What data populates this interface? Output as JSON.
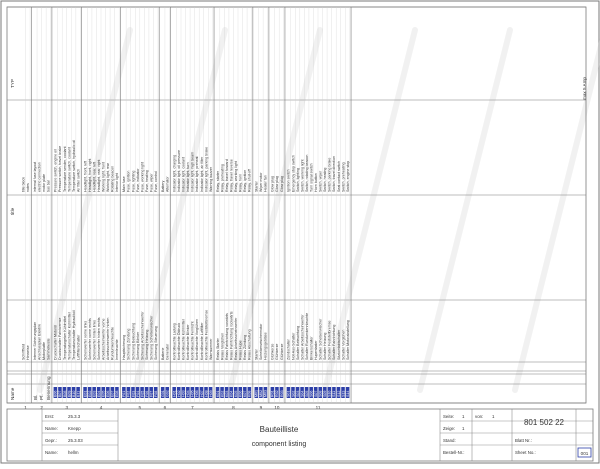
{
  "columns": {
    "name": "Name",
    "bl": "Bl.",
    "pf": "Pf.",
    "benennung": "Benennung",
    "title": "title",
    "type": "TYP"
  },
  "groups": [
    {
      "marker": "1",
      "rows": [
        {
          "name": "",
          "bl": "",
          "pf": "",
          "de": "Schriftfeld",
          "en": "title block",
          "typ": ""
        },
        {
          "name": "",
          "bl": "",
          "pf": "",
          "de": "Hinweise",
          "en": "notes",
          "typ": ""
        }
      ]
    },
    {
      "marker": "2",
      "rows": [
        {
          "name": "",
          "bl": "",
          "pf": "",
          "de": "Interner Sicherungsplan",
          "en": "internal fuse layout",
          "typ": ""
        },
        {
          "name": "",
          "bl": "",
          "pf": "",
          "de": "Anschlussplan Elektrik",
          "en": "electric connection",
          "typ": ""
        },
        {
          "name": "",
          "bl": "",
          "pf": "",
          "de": "Motorplatte",
          "en": "motor plate",
          "typ": ""
        },
        {
          "name": "",
          "bl": "",
          "pf": "",
          "de": "Sammelleiste",
          "en": "bus bar",
          "typ": ""
        }
      ]
    },
    {
      "marker": "3",
      "rows": [
        {
          "name": "B06",
          "bl": "",
          "pf": "",
          "de": "Druckschalter Motoröl",
          "en": "Pressure switch, engine oil",
          "typ": ""
        },
        {
          "name": "B07",
          "bl": "",
          "pf": "",
          "de": "Druckschalter Fahrbremse",
          "en": "Pressure switch, travel brake",
          "typ": ""
        },
        {
          "name": "B08",
          "bl": "",
          "pf": "",
          "de": "Temperaturgeber Kühlmittel",
          "en": "Temperature sender, coolant",
          "typ": ""
        },
        {
          "name": "B09",
          "bl": "",
          "pf": "",
          "de": "Temperaturschalter Kühlmittel",
          "en": "Temperature switch, coolant",
          "typ": ""
        },
        {
          "name": "B10",
          "bl": "",
          "pf": "",
          "de": "Temperaturschalter Hydrauliköl",
          "en": "Temperature switch, hydraulic oil",
          "typ": ""
        },
        {
          "name": "B11",
          "bl": "",
          "pf": "",
          "de": "Luftfilterschalter",
          "en": "Air filter switch",
          "typ": ""
        }
      ]
    },
    {
      "marker": "4",
      "rows": [
        {
          "name": "E01",
          "bl": "",
          "pf": "",
          "de": "Scheinwerfer vorne links",
          "en": "Headlight, front, left",
          "typ": ""
        },
        {
          "name": "E02",
          "bl": "",
          "pf": "",
          "de": "Scheinwerfer vorne rechts",
          "en": "Headlight, front, right",
          "typ": ""
        },
        {
          "name": "E03",
          "bl": "",
          "pf": "",
          "de": "Scheinwerfer hinten links",
          "en": "Headlight, rear, left",
          "typ": ""
        },
        {
          "name": "E04",
          "bl": "",
          "pf": "",
          "de": "Scheinwerfer hinten rechts",
          "en": "Headlight, rear, right",
          "typ": ""
        },
        {
          "name": "E05",
          "bl": "",
          "pf": "",
          "de": "Arbeitsscheinwerfer vorne",
          "en": "Working light, front",
          "typ": ""
        },
        {
          "name": "E06",
          "bl": "",
          "pf": "",
          "de": "Arbeitsscheinwerfer hinten",
          "en": "Working light, rear",
          "typ": ""
        },
        {
          "name": "E07",
          "bl": "",
          "pf": "",
          "de": "Rundumkennleuchte",
          "en": "Rotating beacon",
          "typ": ""
        },
        {
          "name": "E08",
          "bl": "",
          "pf": "",
          "de": "Innenleuchte",
          "en": "Interior light",
          "typ": ""
        }
      ]
    },
    {
      "marker": "5",
      "rows": [
        {
          "name": "F01",
          "bl": "",
          "pf": "",
          "de": "Hauptsicherung",
          "en": "Main fuse",
          "typ": ""
        },
        {
          "name": "F02",
          "bl": "",
          "pf": "",
          "de": "Sicherung Zündung",
          "en": "Fuse, ignition",
          "typ": ""
        },
        {
          "name": "F03",
          "bl": "",
          "pf": "",
          "de": "Sicherung Beleuchtung",
          "en": "Fuse, lighting",
          "typ": ""
        },
        {
          "name": "F04",
          "bl": "",
          "pf": "",
          "de": "Sicherung Blinker",
          "en": "Fuse, indicator",
          "typ": ""
        },
        {
          "name": "F05",
          "bl": "",
          "pf": "",
          "de": "Sicherung Arbeitsscheinwerfer",
          "en": "Fuse, working light",
          "typ": ""
        },
        {
          "name": "F06",
          "bl": "",
          "pf": "",
          "de": "Sicherung Heizung",
          "en": "Fuse, heating",
          "typ": ""
        },
        {
          "name": "F07",
          "bl": "",
          "pf": "",
          "de": "Sicherung Scheibenwischer",
          "en": "Fuse, wiper",
          "typ": ""
        },
        {
          "name": "F08",
          "bl": "",
          "pf": "",
          "de": "Sicherung Steuerung",
          "en": "Fuse, control",
          "typ": ""
        }
      ]
    },
    {
      "marker": "6",
      "rows": [
        {
          "name": "G01",
          "bl": "",
          "pf": "",
          "de": "Batterie",
          "en": "Battery",
          "typ": ""
        },
        {
          "name": "G02",
          "bl": "",
          "pf": "",
          "de": "Generator",
          "en": "Alternator",
          "typ": ""
        }
      ]
    },
    {
      "marker": "7",
      "rows": [
        {
          "name": "H01",
          "bl": "",
          "pf": "",
          "de": "Kontrollleuchte Ladung",
          "en": "Indicator light, charging",
          "typ": ""
        },
        {
          "name": "H02",
          "bl": "",
          "pf": "",
          "de": "Kontrollleuchte Öldruck",
          "en": "Indicator light, oil pressure",
          "typ": ""
        },
        {
          "name": "H03",
          "bl": "",
          "pf": "",
          "de": "Kontrollleuchte Kühlmittel",
          "en": "Indicator light, coolant",
          "typ": ""
        },
        {
          "name": "H04",
          "bl": "",
          "pf": "",
          "de": "Kontrollleuchte Blinker",
          "en": "Indicator light, turn",
          "typ": ""
        },
        {
          "name": "H05",
          "bl": "",
          "pf": "",
          "de": "Kontrollleuchte Fernlicht",
          "en": "Indicator light, high beam",
          "typ": ""
        },
        {
          "name": "H06",
          "bl": "",
          "pf": "",
          "de": "Kontrollleuchte Vorglühen",
          "en": "Indicator light, preheat",
          "typ": ""
        },
        {
          "name": "H07",
          "bl": "",
          "pf": "",
          "de": "Kontrollleuchte Luftfilter",
          "en": "Indicator light, air filter",
          "typ": ""
        },
        {
          "name": "H08",
          "bl": "",
          "pf": "",
          "de": "Kontrollleuchte Feststellbremse",
          "en": "Indicator light, parking brake",
          "typ": ""
        },
        {
          "name": "H09",
          "bl": "",
          "pf": "",
          "de": "Warnsummer",
          "en": "Warning buzzer",
          "typ": ""
        }
      ]
    },
    {
      "marker": "8",
      "rows": [
        {
          "name": "K01",
          "bl": "",
          "pf": "",
          "de": "Relais Starter",
          "en": "Relay, starter",
          "typ": ""
        },
        {
          "name": "K02",
          "bl": "",
          "pf": "",
          "de": "Relais Vorglühen",
          "en": "Relay, preheating",
          "typ": ""
        },
        {
          "name": "K03",
          "bl": "",
          "pf": "",
          "de": "Relais Fahrtrichtung vorwärts",
          "en": "Relay, travel forward",
          "typ": ""
        },
        {
          "name": "K04",
          "bl": "",
          "pf": "",
          "de": "Relais Fahrtrichtung rückwärts",
          "en": "Relay, travel reverse",
          "typ": ""
        },
        {
          "name": "K05",
          "bl": "",
          "pf": "",
          "de": "Relais Arbeitsscheinwerfer",
          "en": "Relay, working light",
          "typ": ""
        },
        {
          "name": "K06",
          "bl": "",
          "pf": "",
          "de": "Relais Hupe",
          "en": "Relay, horn",
          "typ": ""
        },
        {
          "name": "K07",
          "bl": "",
          "pf": "",
          "de": "Relais Zündung",
          "en": "Relay, ignition",
          "typ": ""
        },
        {
          "name": "K08",
          "bl": "",
          "pf": "",
          "de": "Relais Abschaltung",
          "en": "Relay, shut-off",
          "typ": ""
        }
      ]
    },
    {
      "marker": "9",
      "rows": [
        {
          "name": "M01",
          "bl": "",
          "pf": "",
          "de": "Starter",
          "en": "Starter",
          "typ": ""
        },
        {
          "name": "M02",
          "bl": "",
          "pf": "",
          "de": "Scheibenwischermotor",
          "en": "Wiper motor",
          "typ": ""
        },
        {
          "name": "M03",
          "bl": "",
          "pf": "",
          "de": "Heizungsgebläse",
          "en": "Heater fan",
          "typ": ""
        }
      ]
    },
    {
      "marker": "10",
      "rows": [
        {
          "name": "R01",
          "bl": "",
          "pf": "",
          "de": "Glühkerze",
          "en": "Glow plug",
          "typ": ""
        },
        {
          "name": "R02",
          "bl": "",
          "pf": "",
          "de": "Glühkerze",
          "en": "Glow plug",
          "typ": ""
        },
        {
          "name": "R03",
          "bl": "",
          "pf": "",
          "de": "Glühkerze",
          "en": "Glow plug",
          "typ": ""
        }
      ]
    },
    {
      "marker": "11",
      "rows": [
        {
          "name": "S01",
          "bl": "",
          "pf": "",
          "de": "Zündschalter",
          "en": "Ignition switch",
          "typ": ""
        },
        {
          "name": "S02",
          "bl": "",
          "pf": "",
          "de": "Not-Aus-Schalter",
          "en": "Emergency stop switch",
          "typ": ""
        },
        {
          "name": "S03",
          "bl": "",
          "pf": "",
          "de": "Schalter Beleuchtung",
          "en": "Switch, lighting",
          "typ": ""
        },
        {
          "name": "S04",
          "bl": "",
          "pf": "",
          "de": "Schalter Arbeitsscheinwerfer",
          "en": "Switch, working light",
          "typ": ""
        },
        {
          "name": "S05",
          "bl": "",
          "pf": "",
          "de": "Schalter Rundumkennleuchte",
          "en": "Switch, rotating beacon",
          "typ": ""
        },
        {
          "name": "S06",
          "bl": "",
          "pf": "",
          "de": "Blinkerschalter",
          "en": "Turn signal switch",
          "typ": ""
        },
        {
          "name": "S07",
          "bl": "",
          "pf": "",
          "de": "Hupentaster",
          "en": "Horn button",
          "typ": ""
        },
        {
          "name": "S08",
          "bl": "",
          "pf": "",
          "de": "Schalter Scheibenwischer",
          "en": "Switch, wiper",
          "typ": ""
        },
        {
          "name": "S09",
          "bl": "",
          "pf": "",
          "de": "Schalter Heizung",
          "en": "Switch, heating",
          "typ": ""
        },
        {
          "name": "S10",
          "bl": "",
          "pf": "",
          "de": "Schalter Feststellbremse",
          "en": "Switch, parking brake",
          "typ": ""
        },
        {
          "name": "S11",
          "bl": "",
          "pf": "",
          "de": "Schalter Fahrtrichtung",
          "en": "Switch, travel direction",
          "typ": ""
        },
        {
          "name": "S12",
          "bl": "",
          "pf": "",
          "de": "Sitzkontaktschalter",
          "en": "Seat contact switch",
          "typ": ""
        },
        {
          "name": "S13",
          "bl": "",
          "pf": "",
          "de": "Schalter Vorglühen",
          "en": "Switch, preheating",
          "typ": ""
        },
        {
          "name": "S14",
          "bl": "",
          "pf": "",
          "de": "Schalter Motorabstellung",
          "en": "Switch, engine stop",
          "typ": ""
        }
      ]
    }
  ],
  "footer_note": "max 5 Amp",
  "title_block": {
    "erst_label": "Erst:",
    "erst_value": "25.3.3",
    "name_label": "Name:",
    "name_value": "Knepp",
    "gepr_label": "Gepr.:",
    "gepr_value": "25.3.03",
    "name2_label": "Name:",
    "name2_value": "hellm",
    "title_de": "Bauteilliste",
    "title_en": "component listing",
    "seite_label": "Seite:",
    "seite_value": "1",
    "von_label": "von:",
    "von_value": "1",
    "zeige_label": "Zeige:",
    "zeige_value": "1",
    "doc_number": "801 502 22",
    "stand_label": "Stand:",
    "stand_value": "",
    "bestell_label": "Bestell-Nr.:",
    "bestell_value": "",
    "blatt_label": "Blatt Nr.:",
    "blatt_value": "",
    "sheet_label": "Sheet No.:",
    "sheet_value": "",
    "badge": "001"
  },
  "colors": {
    "line": "#7a7a7a",
    "text": "#333333",
    "badge_fill": "#2d3fa8",
    "badge_text": "#ffffff",
    "watermark": "#d8d8d8"
  }
}
